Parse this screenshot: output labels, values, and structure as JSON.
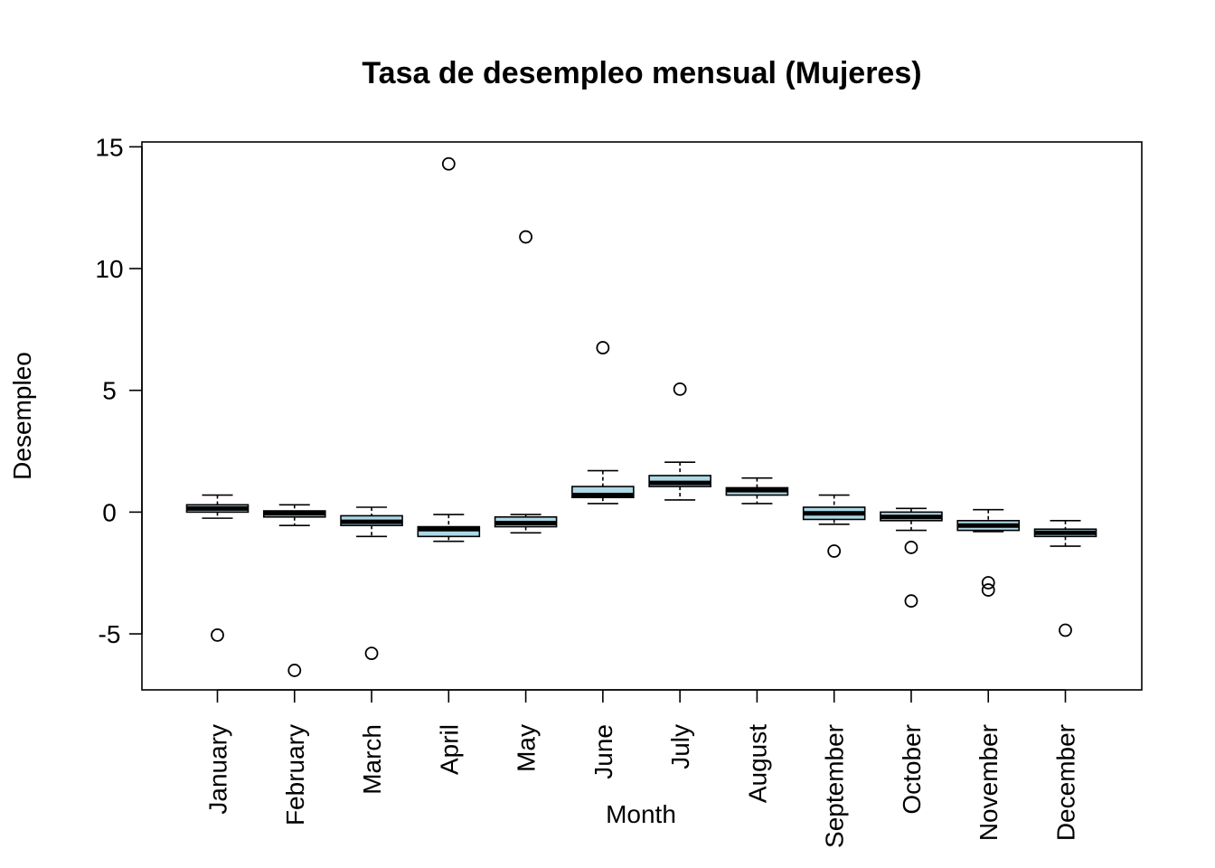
{
  "chart_data": {
    "type": "box",
    "title": "Tasa de desempleo mensual (Mujeres)",
    "xlabel": "Month",
    "ylabel": "Desempleo",
    "ylim": [
      -7.3,
      15.2
    ],
    "yticks": [
      -5,
      0,
      5,
      10,
      15
    ],
    "ytick_labels": [
      "-5",
      "0",
      "5",
      "10",
      "15"
    ],
    "box_fill": "#add8e6",
    "grid": false,
    "categories": [
      "January",
      "February",
      "March",
      "April",
      "May",
      "June",
      "July",
      "August",
      "September",
      "October",
      "November",
      "December"
    ],
    "boxes": [
      {
        "whisker_low": -0.25,
        "q1": 0.0,
        "median": 0.15,
        "q3": 0.3,
        "whisker_high": 0.7,
        "outliers": [
          -5.05
        ]
      },
      {
        "whisker_low": -0.55,
        "q1": -0.2,
        "median": -0.05,
        "q3": 0.05,
        "whisker_high": 0.3,
        "outliers": [
          -6.5
        ]
      },
      {
        "whisker_low": -1.0,
        "q1": -0.55,
        "median": -0.4,
        "q3": -0.15,
        "whisker_high": 0.2,
        "outliers": [
          -5.8
        ]
      },
      {
        "whisker_low": -1.2,
        "q1": -1.0,
        "median": -0.7,
        "q3": -0.6,
        "whisker_high": -0.1,
        "outliers": [
          14.3
        ]
      },
      {
        "whisker_low": -0.85,
        "q1": -0.6,
        "median": -0.45,
        "q3": -0.2,
        "whisker_high": -0.1,
        "outliers": [
          11.3
        ]
      },
      {
        "whisker_low": 0.35,
        "q1": 0.6,
        "median": 0.7,
        "q3": 1.05,
        "whisker_high": 1.7,
        "outliers": [
          6.75
        ]
      },
      {
        "whisker_low": 0.5,
        "q1": 1.05,
        "median": 1.2,
        "q3": 1.5,
        "whisker_high": 2.05,
        "outliers": [
          5.05
        ]
      },
      {
        "whisker_low": 0.35,
        "q1": 0.7,
        "median": 0.9,
        "q3": 1.0,
        "whisker_high": 1.4,
        "outliers": []
      },
      {
        "whisker_low": -0.5,
        "q1": -0.3,
        "median": -0.05,
        "q3": 0.2,
        "whisker_high": 0.7,
        "outliers": [
          -1.6
        ]
      },
      {
        "whisker_low": -0.75,
        "q1": -0.35,
        "median": -0.2,
        "q3": 0.0,
        "whisker_high": 0.15,
        "outliers": [
          -1.45,
          -3.65
        ]
      },
      {
        "whisker_low": -0.8,
        "q1": -0.75,
        "median": -0.55,
        "q3": -0.35,
        "whisker_high": 0.1,
        "outliers": [
          -2.9,
          -3.2
        ]
      },
      {
        "whisker_low": -1.4,
        "q1": -1.0,
        "median": -0.85,
        "q3": -0.7,
        "whisker_high": -0.35,
        "outliers": [
          -4.85
        ]
      }
    ]
  }
}
